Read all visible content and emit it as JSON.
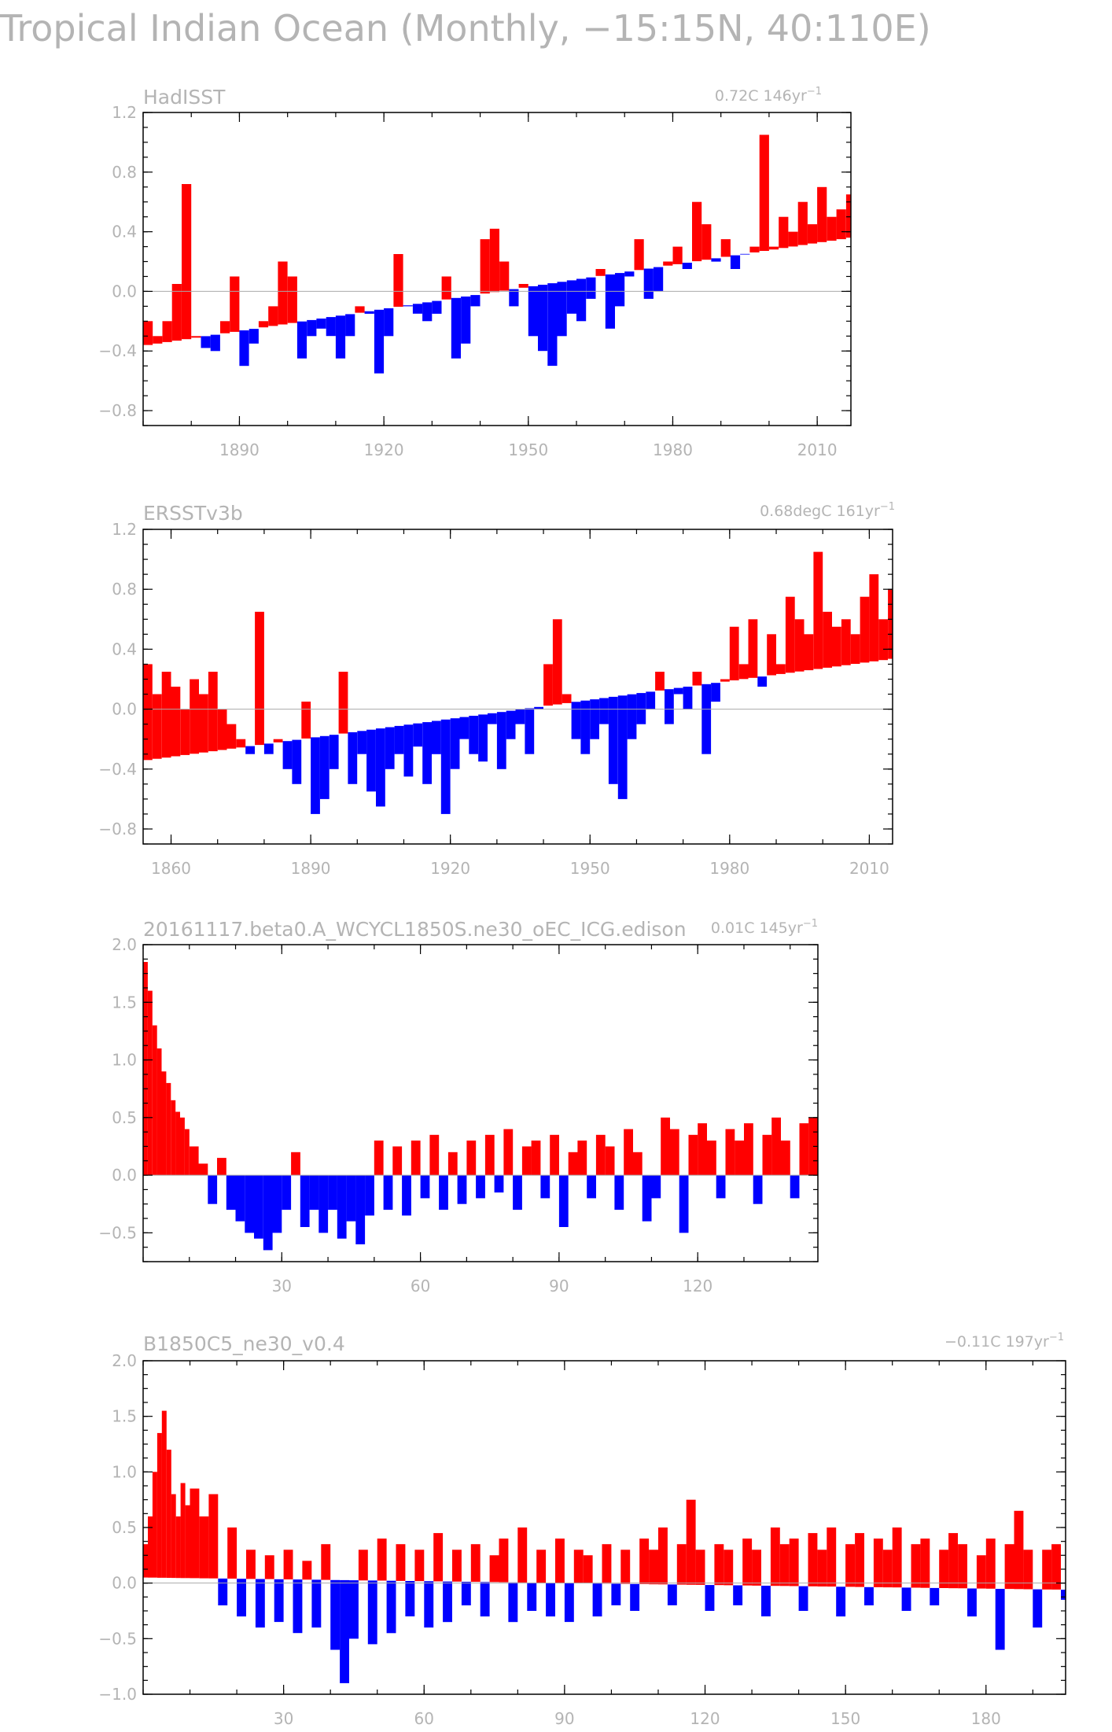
{
  "figure_title": "Tropical Indian Ocean (Monthly, −15:15N, 40:110E)",
  "colors": {
    "positive": "#ff0000",
    "negative": "#0000ff",
    "text": "#b4b4b4",
    "frame": "#000000",
    "zero_line": "#aaaaaa"
  },
  "chart_data": [
    {
      "type": "bar",
      "title": "HadISST",
      "trend_label": "0.72C 146yr",
      "trend_unit_sup": "−1",
      "x_range": [
        1870,
        2017
      ],
      "ylim": [
        -0.9,
        1.2
      ],
      "yticks": [
        -0.8,
        -0.4,
        0.0,
        0.4,
        0.8,
        1.2
      ],
      "ytick_labels": [
        "−0.8",
        "−0.4",
        "0.0",
        "0.4",
        "0.8",
        "1.2"
      ],
      "xticks": [
        1890,
        1920,
        1950,
        1980,
        2010
      ],
      "xtick_labels": [
        "1890",
        "1920",
        "1950",
        "1980",
        "2010"
      ],
      "trend_line": {
        "x": [
          1870,
          2016
        ],
        "y": [
          -0.36,
          0.36
        ]
      },
      "series": [
        {
          "x": [
            1870,
            1872,
            1874,
            1876,
            1878,
            1880,
            1882,
            1884,
            1886,
            1888,
            1890,
            1892,
            1894,
            1896,
            1898,
            1900,
            1902,
            1904,
            1906,
            1908,
            1910,
            1912,
            1914,
            1916,
            1918,
            1920,
            1922,
            1924,
            1926,
            1928,
            1930,
            1932,
            1934,
            1936,
            1938,
            1940,
            1942,
            1944,
            1946,
            1948,
            1950,
            1952,
            1954,
            1956,
            1958,
            1960,
            1962,
            1964,
            1966,
            1968,
            1970,
            1972,
            1974,
            1976,
            1978,
            1980,
            1982,
            1984,
            1986,
            1988,
            1990,
            1992,
            1994,
            1996,
            1998,
            2000,
            2002,
            2004,
            2006,
            2008,
            2010,
            2012,
            2014,
            2016
          ],
          "values": [
            -0.2,
            -0.3,
            -0.2,
            0.05,
            0.72,
            -0.3,
            -0.38,
            -0.4,
            -0.2,
            0.1,
            -0.5,
            -0.35,
            -0.2,
            -0.1,
            0.2,
            0.1,
            -0.45,
            -0.3,
            -0.25,
            -0.3,
            -0.45,
            -0.3,
            -0.1,
            -0.15,
            -0.55,
            -0.3,
            0.25,
            -0.1,
            -0.15,
            -0.2,
            -0.15,
            0.1,
            -0.45,
            -0.35,
            -0.1,
            0.35,
            0.42,
            0.2,
            -0.1,
            0.05,
            -0.3,
            -0.4,
            -0.5,
            -0.3,
            -0.15,
            -0.2,
            -0.05,
            0.15,
            -0.25,
            -0.1,
            0.1,
            0.35,
            -0.05,
            0.0,
            0.2,
            0.3,
            0.15,
            0.6,
            0.45,
            0.2,
            0.35,
            0.15,
            0.25,
            0.3,
            1.05,
            0.3,
            0.5,
            0.4,
            0.6,
            0.45,
            0.7,
            0.5,
            0.55,
            0.65
          ]
        }
      ]
    },
    {
      "type": "bar",
      "title": "ERSSTv3b",
      "trend_label": "0.68degC 161yr",
      "trend_unit_sup": "−1",
      "x_range": [
        1854,
        2015
      ],
      "ylim": [
        -0.9,
        1.2
      ],
      "yticks": [
        -0.8,
        -0.4,
        0.0,
        0.4,
        0.8,
        1.2
      ],
      "ytick_labels": [
        "−0.8",
        "−0.4",
        "0.0",
        "0.4",
        "0.8",
        "1.2"
      ],
      "xticks": [
        1860,
        1890,
        1920,
        1950,
        1980,
        2010
      ],
      "xtick_labels": [
        "1860",
        "1890",
        "1920",
        "1950",
        "1980",
        "2010"
      ],
      "trend_line": {
        "x": [
          1854,
          2015
        ],
        "y": [
          -0.34,
          0.34
        ]
      },
      "series": [
        {
          "x": [
            1854,
            1856,
            1858,
            1860,
            1862,
            1864,
            1866,
            1868,
            1870,
            1872,
            1874,
            1876,
            1878,
            1880,
            1882,
            1884,
            1886,
            1888,
            1890,
            1892,
            1894,
            1896,
            1898,
            1900,
            1902,
            1904,
            1906,
            1908,
            1910,
            1912,
            1914,
            1916,
            1918,
            1920,
            1922,
            1924,
            1926,
            1928,
            1930,
            1932,
            1934,
            1936,
            1938,
            1940,
            1942,
            1944,
            1946,
            1948,
            1950,
            1952,
            1954,
            1956,
            1958,
            1960,
            1962,
            1964,
            1966,
            1968,
            1970,
            1972,
            1974,
            1976,
            1978,
            1980,
            1982,
            1984,
            1986,
            1988,
            1990,
            1992,
            1994,
            1996,
            1998,
            2000,
            2002,
            2004,
            2006,
            2008,
            2010,
            2012,
            2014
          ],
          "values": [
            0.3,
            0.1,
            0.25,
            0.15,
            0.0,
            0.2,
            0.1,
            0.25,
            0.0,
            -0.1,
            -0.2,
            -0.3,
            0.65,
            -0.3,
            -0.2,
            -0.4,
            -0.5,
            0.05,
            -0.7,
            -0.6,
            -0.4,
            0.25,
            -0.5,
            -0.3,
            -0.55,
            -0.65,
            -0.4,
            -0.3,
            -0.45,
            -0.25,
            -0.5,
            -0.3,
            -0.7,
            -0.4,
            -0.2,
            -0.3,
            -0.35,
            -0.1,
            -0.4,
            -0.2,
            -0.1,
            -0.3,
            0.0,
            0.3,
            0.6,
            0.1,
            -0.2,
            -0.3,
            -0.2,
            -0.1,
            -0.5,
            -0.6,
            -0.2,
            -0.1,
            0.0,
            0.25,
            -0.1,
            0.1,
            0.0,
            0.25,
            -0.3,
            0.05,
            0.2,
            0.55,
            0.3,
            0.6,
            0.15,
            0.5,
            0.3,
            0.75,
            0.6,
            0.5,
            1.05,
            0.65,
            0.55,
            0.6,
            0.5,
            0.75,
            0.9,
            0.6,
            0.8
          ]
        }
      ]
    },
    {
      "type": "bar",
      "title": "20161117.beta0.A_WCYCL1850S.ne30_oEC_ICG.edison",
      "trend_label": "0.01C 145yr",
      "trend_unit_sup": "−1",
      "x_range": [
        0,
        146
      ],
      "ylim": [
        -0.75,
        2.0
      ],
      "yticks": [
        -0.5,
        0.0,
        0.5,
        1.0,
        1.5,
        2.0
      ],
      "ytick_labels": [
        "−0.5",
        "0.0",
        "0.5",
        "1.0",
        "1.5",
        "2.0"
      ],
      "xticks": [
        30,
        60,
        90,
        120
      ],
      "xtick_labels": [
        "30",
        "60",
        "90",
        "120"
      ],
      "trend_line": {
        "x": [
          0,
          146
        ],
        "y": [
          0.0,
          0.0
        ]
      },
      "series": [
        {
          "x": [
            0,
            1,
            2,
            3,
            4,
            5,
            6,
            7,
            8,
            9,
            10,
            12,
            14,
            16,
            18,
            20,
            22,
            24,
            26,
            28,
            30,
            32,
            34,
            36,
            38,
            40,
            42,
            44,
            46,
            48,
            50,
            52,
            54,
            56,
            58,
            60,
            62,
            64,
            66,
            68,
            70,
            72,
            74,
            76,
            78,
            80,
            82,
            84,
            86,
            88,
            90,
            92,
            94,
            96,
            98,
            100,
            102,
            104,
            106,
            108,
            110,
            112,
            114,
            116,
            118,
            120,
            122,
            124,
            126,
            128,
            130,
            132,
            134,
            136,
            138,
            140,
            142,
            144
          ],
          "values": [
            1.85,
            1.6,
            1.3,
            1.1,
            0.9,
            0.8,
            0.65,
            0.55,
            0.5,
            0.4,
            0.25,
            0.1,
            -0.25,
            0.15,
            -0.3,
            -0.4,
            -0.5,
            -0.55,
            -0.65,
            -0.5,
            -0.3,
            0.2,
            -0.45,
            -0.3,
            -0.5,
            -0.3,
            -0.55,
            -0.4,
            -0.6,
            -0.35,
            0.3,
            -0.3,
            0.25,
            -0.35,
            0.3,
            -0.2,
            0.35,
            -0.3,
            0.2,
            -0.25,
            0.3,
            -0.2,
            0.35,
            -0.15,
            0.4,
            -0.3,
            0.25,
            0.3,
            -0.2,
            0.35,
            -0.45,
            0.2,
            0.3,
            -0.2,
            0.35,
            0.25,
            -0.3,
            0.4,
            0.2,
            -0.4,
            -0.2,
            0.5,
            0.4,
            -0.5,
            0.35,
            0.45,
            0.3,
            -0.2,
            0.4,
            0.3,
            0.45,
            -0.25,
            0.35,
            0.5,
            0.3,
            -0.2,
            0.45,
            0.5
          ]
        }
      ]
    },
    {
      "type": "bar",
      "title": "B1850C5_ne30_v0.4",
      "trend_label": "−0.11C 197yr",
      "trend_unit_sup": "−1",
      "x_range": [
        0,
        197
      ],
      "ylim": [
        -1.0,
        2.0
      ],
      "yticks": [
        -1.0,
        -0.5,
        0.0,
        0.5,
        1.0,
        1.5,
        2.0
      ],
      "ytick_labels": [
        "−1.0",
        "−0.5",
        "0.0",
        "0.5",
        "1.0",
        "1.5",
        "2.0"
      ],
      "xticks": [
        30,
        60,
        90,
        120,
        150,
        180
      ],
      "xtick_labels": [
        "30",
        "60",
        "90",
        "120",
        "150",
        "180"
      ],
      "trend_line": {
        "x": [
          0,
          197
        ],
        "y": [
          0.05,
          -0.06
        ]
      },
      "series": [
        {
          "x": [
            0,
            1,
            2,
            3,
            4,
            5,
            6,
            7,
            8,
            9,
            10,
            12,
            14,
            16,
            18,
            20,
            22,
            24,
            26,
            28,
            30,
            32,
            34,
            36,
            38,
            40,
            42,
            44,
            46,
            48,
            50,
            52,
            54,
            56,
            58,
            60,
            62,
            64,
            66,
            68,
            70,
            72,
            74,
            76,
            78,
            80,
            82,
            84,
            86,
            88,
            90,
            92,
            94,
            96,
            98,
            100,
            102,
            104,
            106,
            108,
            110,
            112,
            114,
            116,
            118,
            120,
            122,
            124,
            126,
            128,
            130,
            132,
            134,
            136,
            138,
            140,
            142,
            144,
            146,
            148,
            150,
            152,
            154,
            156,
            158,
            160,
            162,
            164,
            166,
            168,
            170,
            172,
            174,
            176,
            178,
            180,
            182,
            184,
            186,
            188,
            190,
            192,
            194,
            196
          ],
          "values": [
            0.35,
            0.6,
            1.0,
            1.35,
            1.55,
            1.2,
            0.8,
            0.6,
            0.9,
            0.7,
            0.85,
            0.6,
            0.8,
            -0.2,
            0.5,
            -0.3,
            0.3,
            -0.4,
            0.25,
            -0.35,
            0.3,
            -0.45,
            0.2,
            -0.4,
            0.35,
            -0.6,
            -0.9,
            -0.5,
            0.3,
            -0.55,
            0.4,
            -0.45,
            0.35,
            -0.3,
            0.3,
            -0.4,
            0.45,
            -0.35,
            0.3,
            -0.2,
            0.35,
            -0.3,
            0.25,
            0.4,
            -0.35,
            0.5,
            -0.25,
            0.3,
            -0.3,
            0.4,
            -0.35,
            0.3,
            0.25,
            -0.3,
            0.35,
            -0.2,
            0.3,
            -0.25,
            0.4,
            0.3,
            0.5,
            -0.2,
            0.35,
            0.75,
            0.3,
            -0.25,
            0.35,
            0.3,
            -0.2,
            0.4,
            0.3,
            -0.3,
            0.5,
            0.35,
            0.4,
            -0.25,
            0.45,
            0.3,
            0.5,
            -0.3,
            0.35,
            0.45,
            -0.2,
            0.4,
            0.3,
            0.5,
            -0.25,
            0.35,
            0.4,
            -0.2,
            0.3,
            0.45,
            0.35,
            -0.3,
            0.25,
            0.4,
            -0.6,
            0.35,
            0.65,
            0.3,
            -0.4,
            0.3,
            0.35,
            -0.15
          ]
        }
      ]
    }
  ]
}
